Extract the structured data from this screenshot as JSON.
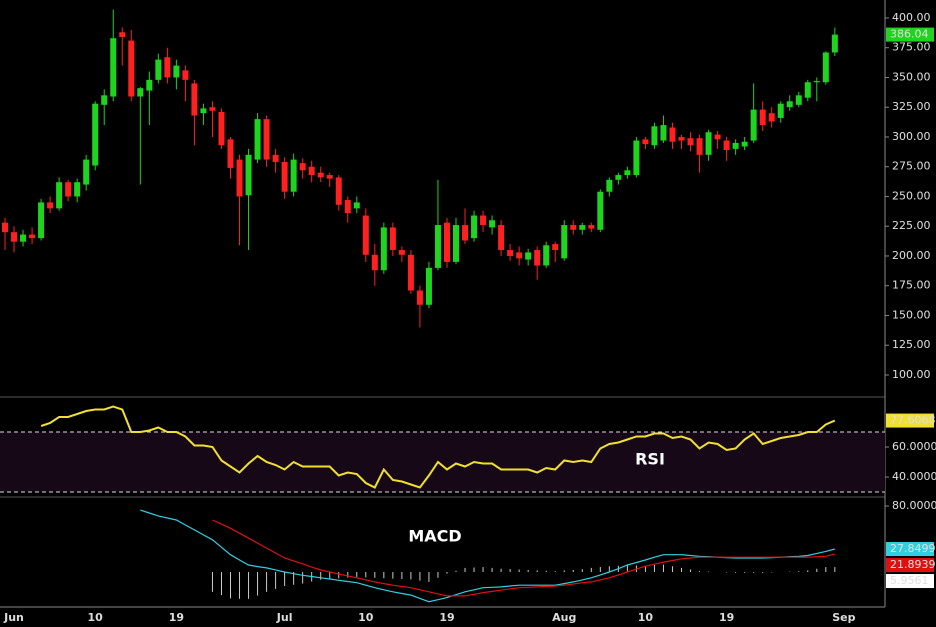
{
  "chart_data": [
    {
      "type": "candlestick",
      "categories": [
        null,
        "Jun",
        null,
        null,
        null,
        null,
        null,
        null,
        null,
        null,
        "10",
        null,
        null,
        null,
        null,
        null,
        null,
        null,
        null,
        "19",
        null,
        null,
        null,
        null,
        null,
        null,
        null,
        null,
        null,
        null,
        null,
        "Jul",
        null,
        null,
        null,
        null,
        null,
        null,
        null,
        null,
        "10",
        null,
        null,
        null,
        null,
        null,
        null,
        null,
        null,
        "19",
        null,
        null,
        null,
        null,
        null,
        null,
        null,
        null,
        null,
        null,
        null,
        null,
        "Aug",
        null,
        null,
        null,
        null,
        null,
        null,
        null,
        null,
        "10",
        null,
        null,
        null,
        null,
        null,
        null,
        null,
        null,
        "19",
        null,
        null,
        null,
        null,
        null,
        null,
        null,
        null,
        null,
        null,
        null,
        null,
        "Sep"
      ],
      "open": [
        228,
        220,
        212,
        218,
        215,
        245,
        240,
        262,
        250,
        260,
        276,
        327,
        334,
        388,
        381,
        334,
        339,
        348,
        367,
        350,
        356,
        345,
        320,
        325,
        321,
        298,
        281,
        251,
        281,
        315,
        285,
        279,
        254,
        278,
        275,
        270,
        268,
        266,
        247,
        240,
        234,
        201,
        188,
        224,
        205,
        201,
        171,
        159,
        190,
        228,
        195,
        226,
        215,
        234,
        224,
        226,
        205,
        203,
        197,
        205,
        192,
        210,
        198,
        226,
        222,
        226,
        222,
        254,
        264,
        268,
        268,
        298,
        293,
        297,
        308,
        300,
        299,
        299,
        285,
        302,
        297,
        290,
        292,
        297,
        323,
        320,
        316,
        325,
        327,
        333,
        346,
        346,
        371,
        null
      ],
      "high": [
        232,
        225,
        222,
        224,
        248,
        250,
        266,
        264,
        265,
        285,
        330,
        340,
        407,
        392,
        390,
        342,
        355,
        370,
        375,
        365,
        360,
        348,
        328,
        330,
        324,
        300,
        285,
        290,
        320,
        318,
        290,
        283,
        286,
        282,
        280,
        275,
        270,
        268,
        250,
        250,
        240,
        210,
        228,
        228,
        208,
        205,
        175,
        195,
        264,
        232,
        232,
        240,
        238,
        238,
        234,
        230,
        210,
        208,
        206,
        208,
        212,
        212,
        230,
        230,
        228,
        228,
        256,
        266,
        270,
        275,
        300,
        300,
        312,
        318,
        312,
        302,
        304,
        302,
        306,
        305,
        300,
        298,
        300,
        345,
        330,
        325,
        330,
        335,
        338,
        348,
        350,
        372,
        392,
        null
      ],
      "low": [
        205,
        203,
        208,
        210,
        213,
        236,
        238,
        246,
        245,
        255,
        272,
        310,
        330,
        360,
        330,
        260,
        310,
        345,
        345,
        340,
        330,
        293,
        310,
        300,
        290,
        265,
        209,
        205,
        278,
        275,
        270,
        248,
        250,
        265,
        262,
        262,
        258,
        238,
        228,
        236,
        195,
        175,
        185,
        200,
        195,
        168,
        140,
        156,
        188,
        190,
        193,
        210,
        212,
        220,
        218,
        200,
        196,
        192,
        192,
        180,
        190,
        195,
        196,
        218,
        218,
        220,
        220,
        250,
        260,
        265,
        266,
        290,
        290,
        295,
        290,
        290,
        288,
        270,
        280,
        290,
        280,
        285,
        289,
        295,
        305,
        308,
        312,
        322,
        325,
        330,
        330,
        344,
        368,
        null
      ],
      "close": [
        220,
        212,
        218,
        215,
        245,
        240,
        262,
        250,
        262,
        281,
        328,
        335,
        383,
        384,
        334,
        341,
        348,
        365,
        350,
        360,
        348,
        318,
        324,
        322,
        293,
        274,
        250,
        285,
        315,
        281,
        279,
        254,
        281,
        272,
        268,
        266,
        265,
        243,
        236,
        245,
        201,
        188,
        224,
        205,
        201,
        171,
        159,
        190,
        226,
        195,
        226,
        213,
        234,
        226,
        230,
        205,
        200,
        198,
        203,
        192,
        209,
        205,
        226,
        222,
        226,
        223,
        254,
        264,
        268,
        272,
        297,
        294,
        309,
        310,
        296,
        297,
        293,
        285,
        304,
        298,
        289,
        295,
        296,
        323,
        310,
        313,
        328,
        330,
        335,
        346,
        347,
        371,
        386.04,
        null
      ],
      "up_color": "#1ed41e",
      "down_color": "#ff2020",
      "ylim": [
        81.5,
        415.1
      ],
      "yticks": [
        {
          "value": 100,
          "label": "100.00"
        },
        {
          "value": 125,
          "label": "125.00"
        },
        {
          "value": 150,
          "label": "150.00"
        },
        {
          "value": 175,
          "label": "175.00"
        },
        {
          "value": 200,
          "label": "200.00"
        },
        {
          "value": 225,
          "label": "225.00"
        },
        {
          "value": 250,
          "label": "250.00"
        },
        {
          "value": 275,
          "label": "275.00"
        },
        {
          "value": 300,
          "label": "300.00"
        },
        {
          "value": 325,
          "label": "325.00"
        },
        {
          "value": 350,
          "label": "350.00"
        },
        {
          "value": 375,
          "label": "375.00"
        },
        {
          "value": 400,
          "label": "400.00"
        }
      ]
    },
    {
      "type": "line",
      "annotation": "RSI",
      "color": "#f0e030",
      "values": [
        null,
        null,
        null,
        null,
        74,
        76,
        80,
        80,
        82,
        84,
        85,
        85,
        87,
        85,
        70,
        70,
        71,
        73,
        70,
        70,
        67,
        61,
        61,
        60,
        51,
        47,
        43,
        49,
        54,
        50,
        48,
        45,
        50,
        47,
        47,
        47,
        47,
        41,
        43,
        42,
        36,
        33,
        45,
        38,
        37,
        35,
        33,
        41,
        50,
        45,
        49,
        47,
        50,
        49,
        49,
        45,
        45,
        45,
        45,
        43,
        46,
        45,
        51,
        50,
        51,
        50,
        59,
        62,
        63,
        65,
        67,
        67,
        69,
        69,
        66,
        67,
        65,
        59,
        63,
        62,
        58,
        59,
        65,
        69,
        62,
        64,
        66,
        67,
        68,
        70,
        70,
        75,
        77.6068,
        null
      ],
      "bands": [
        30,
        70
      ],
      "band_color": "#160816",
      "ylim": [
        26.7,
        93.3
      ],
      "yticks": [
        {
          "value": 40,
          "label": "40.0000"
        },
        {
          "value": 60,
          "label": "60.0000"
        }
      ]
    },
    {
      "type": "macd",
      "annotation": "MACD",
      "macd": [
        null,
        null,
        null,
        null,
        null,
        null,
        null,
        null,
        null,
        null,
        null,
        null,
        null,
        null,
        null,
        75,
        71.5,
        68,
        65.5,
        63,
        57,
        51,
        45,
        39,
        30,
        21,
        14.5,
        8.5,
        6.5,
        5,
        2.5,
        0,
        -2,
        -4,
        -5.5,
        -7,
        -8.5,
        -10,
        -11.5,
        -13,
        -16,
        -19,
        -21.5,
        -24,
        -26,
        -28,
        -32,
        -36,
        -33.5,
        -31,
        -27.5,
        -24,
        -21.5,
        -19,
        -18.5,
        -18,
        -17,
        -16,
        -16,
        -16,
        -16,
        -16,
        -14,
        -12,
        -9.5,
        -7,
        -3.5,
        0,
        4,
        8.5,
        11.5,
        14.5,
        18,
        21,
        21,
        21,
        20,
        19,
        18.5,
        18,
        17.5,
        17,
        17,
        17,
        17,
        17.5,
        18,
        18.5,
        19,
        20,
        22.5,
        25,
        27.8499,
        null
      ],
      "signal": [
        null,
        null,
        null,
        null,
        null,
        null,
        null,
        null,
        null,
        null,
        null,
        null,
        null,
        null,
        null,
        null,
        null,
        null,
        null,
        null,
        null,
        null,
        null,
        63,
        58,
        53,
        47,
        41,
        35,
        29,
        23,
        17,
        13.5,
        10,
        6,
        2.4,
        0,
        -2.4,
        -4.7,
        -7,
        -9.5,
        -12,
        -14,
        -16,
        -17.5,
        -19,
        -21.5,
        -24,
        -26.5,
        -29,
        -29,
        -29,
        -27,
        -25,
        -23.5,
        -22,
        -20.5,
        -19,
        -18.5,
        -18,
        -17.5,
        -17,
        -16,
        -14.5,
        -13,
        -12,
        -9.5,
        -7,
        -3.5,
        0,
        3.5,
        7,
        9.5,
        12,
        14,
        16,
        17,
        18,
        18,
        18,
        18,
        18,
        18,
        18,
        18,
        18,
        18,
        18,
        18,
        18,
        18.5,
        19,
        21.8939,
        null
      ],
      "histogram": [
        null,
        null,
        null,
        null,
        null,
        null,
        null,
        null,
        null,
        null,
        null,
        null,
        null,
        null,
        null,
        null,
        null,
        null,
        null,
        null,
        null,
        null,
        null,
        -24,
        -28,
        -32,
        -32.5,
        -32.5,
        -28.5,
        -24,
        -20.5,
        -17,
        -15.5,
        -14,
        -11.5,
        -9.4,
        -8.5,
        -7.6,
        -6.8,
        -6,
        -6.5,
        -7,
        -7.5,
        -8,
        -8.5,
        -9,
        -10.5,
        -12,
        -7,
        -2,
        1.5,
        5,
        5.5,
        6,
        5,
        4,
        3.5,
        3,
        2.5,
        2,
        1.5,
        1,
        2,
        2.5,
        3.5,
        5,
        6,
        7,
        7.5,
        8.5,
        8,
        7.5,
        8.5,
        9,
        7,
        5,
        3,
        1,
        0.5,
        0,
        -0.5,
        -1,
        -1,
        -1,
        -1,
        -0.5,
        0,
        0.5,
        1,
        2,
        4,
        6,
        5.9561,
        null
      ],
      "macd_color": "#30d0e0",
      "signal_color": "#e01010",
      "hist_color": "#cccccc",
      "ylim": [
        -42.4,
        90.9
      ],
      "yticks": [
        {
          "value": 80,
          "label": "80.0000"
        }
      ]
    }
  ]
}
